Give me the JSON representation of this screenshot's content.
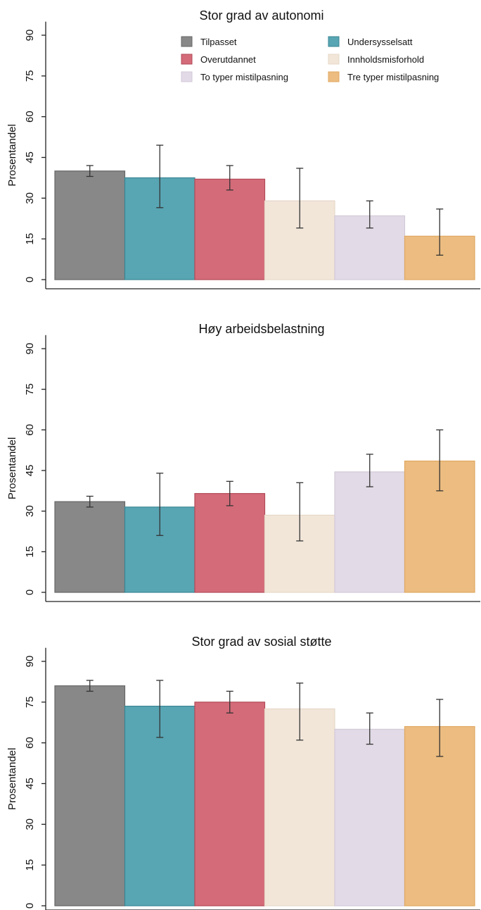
{
  "chart_data": [
    {
      "type": "bar",
      "title": "Stor grad av autonomi",
      "ylabel": "Prosentandel",
      "ylim": [
        0,
        95
      ],
      "yticks": [
        0,
        15,
        30,
        45,
        60,
        75,
        90
      ],
      "series": [
        {
          "name": "Tilpasset",
          "value": 40,
          "low": 38,
          "high": 42
        },
        {
          "name": "Undersysselsatt",
          "value": 37.5,
          "low": 26.5,
          "high": 49.5
        },
        {
          "name": "Overutdannet",
          "value": 37,
          "low": 33,
          "high": 42
        },
        {
          "name": "Innholdsmisforhold",
          "value": 29,
          "low": 19,
          "high": 41
        },
        {
          "name": "To typer mistilpasning",
          "value": 23.5,
          "low": 19,
          "high": 29
        },
        {
          "name": "Tre typer mistilpasning",
          "value": 16,
          "low": 9,
          "high": 26
        }
      ]
    },
    {
      "type": "bar",
      "title": "Høy arbeidsbelastning",
      "ylabel": "Prosentandel",
      "ylim": [
        0,
        95
      ],
      "yticks": [
        0,
        15,
        30,
        45,
        60,
        75,
        90
      ],
      "series": [
        {
          "name": "Tilpasset",
          "value": 33.5,
          "low": 31.5,
          "high": 35.5
        },
        {
          "name": "Undersysselsatt",
          "value": 31.5,
          "low": 21,
          "high": 44
        },
        {
          "name": "Overutdannet",
          "value": 36.5,
          "low": 32,
          "high": 41
        },
        {
          "name": "Innholdsmisforhold",
          "value": 28.5,
          "low": 19,
          "high": 40.5
        },
        {
          "name": "To typer mistilpasning",
          "value": 44.5,
          "low": 39,
          "high": 51
        },
        {
          "name": "Tre typer mistilpasning",
          "value": 48.5,
          "low": 37.5,
          "high": 60
        }
      ]
    },
    {
      "type": "bar",
      "title": "Stor grad av sosial støtte",
      "ylabel": "Prosentandel",
      "ylim": [
        0,
        95
      ],
      "yticks": [
        0,
        15,
        30,
        45,
        60,
        75,
        90
      ],
      "series": [
        {
          "name": "Tilpasset",
          "value": 81,
          "low": 79,
          "high": 83
        },
        {
          "name": "Undersysselsatt",
          "value": 73.5,
          "low": 62,
          "high": 83
        },
        {
          "name": "Overutdannet",
          "value": 75,
          "low": 71,
          "high": 79
        },
        {
          "name": "Innholdsmisforhold",
          "value": 72.5,
          "low": 61,
          "high": 82
        },
        {
          "name": "To typer mistilpasning",
          "value": 65,
          "low": 59.5,
          "high": 71
        },
        {
          "name": "Tre typer mistilpasning",
          "value": 66,
          "low": 55,
          "high": 76
        }
      ]
    }
  ],
  "legend": {
    "placement": "top-right",
    "items": [
      {
        "label": "Tilpasset",
        "color": "#888888",
        "stroke": "#666666"
      },
      {
        "label": "Undersysselsatt",
        "color": "#58a5b3",
        "stroke": "#3a8795"
      },
      {
        "label": "Overutdannet",
        "color": "#d46b79",
        "stroke": "#b24a58"
      },
      {
        "label": "Innholdsmisforhold",
        "color": "#f2e6d9",
        "stroke": "#e6d8c8"
      },
      {
        "label": "To typer mistilpasning",
        "color": "#e2dae6",
        "stroke": "#d3c9d8"
      },
      {
        "label": "Tre typer mistilpasning",
        "color": "#ecbc80",
        "stroke": "#e0a962"
      }
    ]
  },
  "colors": {
    "Tilpasset": "#888888",
    "Undersysselsatt": "#58a5b3",
    "Overutdannet": "#d46b79",
    "Innholdsmisforhold": "#f2e6d9",
    "To typer mistilpasning": "#e2dae6",
    "Tre typer mistilpasning": "#ecbc80"
  },
  "strokes": {
    "Tilpasset": "#666666",
    "Undersysselsatt": "#3a8795",
    "Overutdannet": "#b24a58",
    "Innholdsmisforhold": "#e6d8c8",
    "To typer mistilpasning": "#d3c9d8",
    "Tre typer mistilpasning": "#e0a962"
  }
}
